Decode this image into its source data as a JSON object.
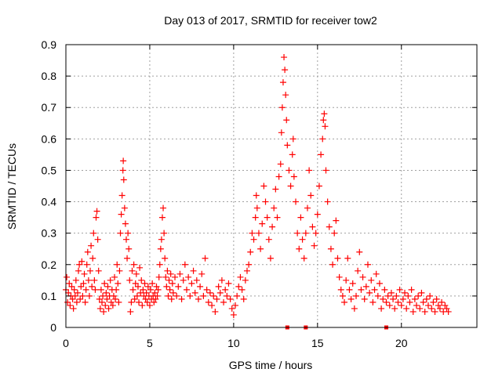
{
  "chart_data": {
    "type": "scatter",
    "title": "Day 013 of 2017, SRMTID for receiver tow2",
    "xlabel": "GPS time / hours",
    "ylabel": "SRMTID / TECUs",
    "xlim": [
      0,
      24.5
    ],
    "ylim": [
      0,
      0.9
    ],
    "xticks": [
      0,
      5,
      10,
      15,
      20
    ],
    "xtick_labels": [
      "0",
      "5",
      "10",
      "15",
      "20"
    ],
    "yticks": [
      0,
      0.1,
      0.2,
      0.3,
      0.4,
      0.5,
      0.6,
      0.7,
      0.8,
      0.9
    ],
    "ytick_labels": [
      "0",
      "0.1",
      "0.2",
      "0.3",
      "0.4",
      "0.5",
      "0.6",
      "0.7",
      "0.8",
      "0.9"
    ],
    "grid": true,
    "marker": "+",
    "color": "#ff0000",
    "series": [
      {
        "name": "SRMTID",
        "points": [
          [
            0.0,
            0.12
          ],
          [
            0.05,
            0.16
          ],
          [
            0.1,
            0.08
          ],
          [
            0.15,
            0.11
          ],
          [
            0.2,
            0.14
          ],
          [
            0.25,
            0.07
          ],
          [
            0.3,
            0.1
          ],
          [
            0.35,
            0.13
          ],
          [
            0.4,
            0.09
          ],
          [
            0.45,
            0.06
          ],
          [
            0.5,
            0.12
          ],
          [
            0.55,
            0.1
          ],
          [
            0.6,
            0.15
          ],
          [
            0.65,
            0.08
          ],
          [
            0.7,
            0.11
          ],
          [
            0.75,
            0.18
          ],
          [
            0.8,
            0.2
          ],
          [
            0.85,
            0.09
          ],
          [
            0.9,
            0.13
          ],
          [
            0.95,
            0.21
          ],
          [
            1.0,
            0.1
          ],
          [
            1.05,
            0.14
          ],
          [
            1.1,
            0.17
          ],
          [
            1.15,
            0.08
          ],
          [
            1.2,
            0.12
          ],
          [
            1.25,
            0.2
          ],
          [
            1.3,
            0.24
          ],
          [
            1.35,
            0.15
          ],
          [
            1.4,
            0.1
          ],
          [
            1.45,
            0.18
          ],
          [
            1.5,
            0.26
          ],
          [
            1.55,
            0.13
          ],
          [
            1.6,
            0.22
          ],
          [
            1.65,
            0.3
          ],
          [
            1.7,
            0.15
          ],
          [
            1.75,
            0.12
          ],
          [
            1.8,
            0.35
          ],
          [
            1.85,
            0.37
          ],
          [
            1.9,
            0.28
          ],
          [
            1.95,
            0.18
          ],
          [
            2.0,
            0.09
          ],
          [
            2.05,
            0.06
          ],
          [
            2.1,
            0.12
          ],
          [
            2.15,
            0.08
          ],
          [
            2.2,
            0.1
          ],
          [
            2.25,
            0.05
          ],
          [
            2.3,
            0.14
          ],
          [
            2.35,
            0.07
          ],
          [
            2.4,
            0.11
          ],
          [
            2.45,
            0.09
          ],
          [
            2.5,
            0.13
          ],
          [
            2.55,
            0.06
          ],
          [
            2.6,
            0.1
          ],
          [
            2.65,
            0.15
          ],
          [
            2.7,
            0.08
          ],
          [
            2.75,
            0.12
          ],
          [
            2.8,
            0.07
          ],
          [
            2.85,
            0.1
          ],
          [
            2.9,
            0.16
          ],
          [
            2.95,
            0.09
          ],
          [
            3.0,
            0.12
          ],
          [
            3.05,
            0.2
          ],
          [
            3.1,
            0.14
          ],
          [
            3.15,
            0.08
          ],
          [
            3.2,
            0.18
          ],
          [
            3.25,
            0.3
          ],
          [
            3.3,
            0.36
          ],
          [
            3.35,
            0.42
          ],
          [
            3.4,
            0.5
          ],
          [
            3.42,
            0.53
          ],
          [
            3.45,
            0.47
          ],
          [
            3.5,
            0.38
          ],
          [
            3.55,
            0.33
          ],
          [
            3.6,
            0.28
          ],
          [
            3.65,
            0.22
          ],
          [
            3.7,
            0.3
          ],
          [
            3.75,
            0.25
          ],
          [
            3.8,
            0.15
          ],
          [
            3.85,
            0.05
          ],
          [
            3.9,
            0.08
          ],
          [
            3.95,
            0.18
          ],
          [
            4.0,
            0.12
          ],
          [
            4.05,
            0.2
          ],
          [
            4.1,
            0.09
          ],
          [
            4.15,
            0.14
          ],
          [
            4.2,
            0.17
          ],
          [
            4.25,
            0.1
          ],
          [
            4.3,
            0.13
          ],
          [
            4.35,
            0.08
          ],
          [
            4.4,
            0.19
          ],
          [
            4.45,
            0.11
          ],
          [
            4.5,
            0.15
          ],
          [
            4.55,
            0.07
          ],
          [
            4.6,
            0.12
          ],
          [
            4.65,
            0.1
          ],
          [
            4.7,
            0.14
          ],
          [
            4.75,
            0.09
          ],
          [
            4.8,
            0.11
          ],
          [
            4.85,
            0.08
          ],
          [
            4.9,
            0.13
          ],
          [
            4.95,
            0.1
          ],
          [
            5.0,
            0.07
          ],
          [
            5.05,
            0.12
          ],
          [
            5.1,
            0.09
          ],
          [
            5.15,
            0.14
          ],
          [
            5.2,
            0.1
          ],
          [
            5.25,
            0.08
          ],
          [
            5.3,
            0.11
          ],
          [
            5.35,
            0.09
          ],
          [
            5.4,
            0.13
          ],
          [
            5.45,
            0.1
          ],
          [
            5.5,
            0.12
          ],
          [
            5.55,
            0.16
          ],
          [
            5.6,
            0.2
          ],
          [
            5.65,
            0.25
          ],
          [
            5.7,
            0.28
          ],
          [
            5.75,
            0.35
          ],
          [
            5.8,
            0.38
          ],
          [
            5.85,
            0.3
          ],
          [
            5.9,
            0.22
          ],
          [
            5.95,
            0.16
          ],
          [
            6.0,
            0.13
          ],
          [
            6.05,
            0.18
          ],
          [
            6.1,
            0.1
          ],
          [
            6.15,
            0.15
          ],
          [
            6.2,
            0.12
          ],
          [
            6.25,
            0.17
          ],
          [
            6.3,
            0.09
          ],
          [
            6.35,
            0.14
          ],
          [
            6.4,
            0.11
          ],
          [
            6.5,
            0.16
          ],
          [
            6.6,
            0.1
          ],
          [
            6.7,
            0.13
          ],
          [
            6.8,
            0.17
          ],
          [
            6.9,
            0.09
          ],
          [
            7.0,
            0.15
          ],
          [
            7.1,
            0.2
          ],
          [
            7.2,
            0.12
          ],
          [
            7.3,
            0.16
          ],
          [
            7.4,
            0.1
          ],
          [
            7.5,
            0.14
          ],
          [
            7.6,
            0.18
          ],
          [
            7.7,
            0.11
          ],
          [
            7.8,
            0.15
          ],
          [
            7.9,
            0.09
          ],
          [
            8.0,
            0.13
          ],
          [
            8.1,
            0.17
          ],
          [
            8.2,
            0.1
          ],
          [
            8.3,
            0.22
          ],
          [
            8.4,
            0.12
          ],
          [
            8.5,
            0.08
          ],
          [
            8.6,
            0.11
          ],
          [
            8.7,
            0.07
          ],
          [
            8.8,
            0.1
          ],
          [
            8.9,
            0.05
          ],
          [
            9.0,
            0.09
          ],
          [
            9.1,
            0.13
          ],
          [
            9.2,
            0.11
          ],
          [
            9.3,
            0.15
          ],
          [
            9.4,
            0.08
          ],
          [
            9.5,
            0.12
          ],
          [
            9.6,
            0.1
          ],
          [
            9.7,
            0.14
          ],
          [
            9.8,
            0.09
          ],
          [
            9.9,
            0.06
          ],
          [
            10.0,
            0.04
          ],
          [
            10.1,
            0.07
          ],
          [
            10.2,
            0.1
          ],
          [
            10.3,
            0.13
          ],
          [
            10.4,
            0.16
          ],
          [
            10.5,
            0.12
          ],
          [
            10.6,
            0.09
          ],
          [
            10.7,
            0.15
          ],
          [
            10.8,
            0.18
          ],
          [
            10.9,
            0.2
          ],
          [
            11.0,
            0.24
          ],
          [
            11.1,
            0.3
          ],
          [
            11.2,
            0.28
          ],
          [
            11.3,
            0.35
          ],
          [
            11.35,
            0.42
          ],
          [
            11.4,
            0.38
          ],
          [
            11.5,
            0.3
          ],
          [
            11.6,
            0.25
          ],
          [
            11.7,
            0.33
          ],
          [
            11.8,
            0.45
          ],
          [
            11.9,
            0.4
          ],
          [
            12.0,
            0.35
          ],
          [
            12.1,
            0.28
          ],
          [
            12.2,
            0.22
          ],
          [
            12.3,
            0.32
          ],
          [
            12.4,
            0.38
          ],
          [
            12.5,
            0.44
          ],
          [
            12.6,
            0.35
          ],
          [
            12.7,
            0.48
          ],
          [
            12.8,
            0.52
          ],
          [
            12.85,
            0.62
          ],
          [
            12.9,
            0.7
          ],
          [
            12.95,
            0.78
          ],
          [
            13.0,
            0.86
          ],
          [
            13.05,
            0.82
          ],
          [
            13.1,
            0.74
          ],
          [
            13.15,
            0.66
          ],
          [
            13.2,
            0.58
          ],
          [
            13.3,
            0.5
          ],
          [
            13.4,
            0.45
          ],
          [
            13.5,
            0.55
          ],
          [
            13.55,
            0.6
          ],
          [
            13.6,
            0.48
          ],
          [
            13.7,
            0.4
          ],
          [
            13.8,
            0.3
          ],
          [
            13.9,
            0.25
          ],
          [
            14.0,
            0.35
          ],
          [
            14.1,
            0.28
          ],
          [
            14.2,
            0.22
          ],
          [
            14.3,
            0.3
          ],
          [
            14.4,
            0.38
          ],
          [
            14.5,
            0.5
          ],
          [
            14.6,
            0.42
          ],
          [
            14.7,
            0.32
          ],
          [
            14.8,
            0.26
          ],
          [
            14.9,
            0.3
          ],
          [
            15.0,
            0.36
          ],
          [
            15.1,
            0.45
          ],
          [
            15.2,
            0.55
          ],
          [
            15.3,
            0.6
          ],
          [
            15.35,
            0.66
          ],
          [
            15.4,
            0.68
          ],
          [
            15.45,
            0.64
          ],
          [
            15.5,
            0.5
          ],
          [
            15.6,
            0.4
          ],
          [
            15.7,
            0.32
          ],
          [
            15.8,
            0.25
          ],
          [
            15.9,
            0.2
          ],
          [
            16.0,
            0.3
          ],
          [
            16.1,
            0.34
          ],
          [
            16.2,
            0.22
          ],
          [
            16.3,
            0.16
          ],
          [
            16.4,
            0.12
          ],
          [
            16.5,
            0.1
          ],
          [
            16.6,
            0.08
          ],
          [
            16.7,
            0.15
          ],
          [
            16.8,
            0.22
          ],
          [
            16.9,
            0.12
          ],
          [
            17.0,
            0.09
          ],
          [
            17.1,
            0.14
          ],
          [
            17.2,
            0.06
          ],
          [
            17.3,
            0.1
          ],
          [
            17.4,
            0.18
          ],
          [
            17.5,
            0.24
          ],
          [
            17.6,
            0.12
          ],
          [
            17.7,
            0.16
          ],
          [
            17.8,
            0.09
          ],
          [
            17.9,
            0.13
          ],
          [
            18.0,
            0.2
          ],
          [
            18.1,
            0.11
          ],
          [
            18.2,
            0.15
          ],
          [
            18.3,
            0.08
          ],
          [
            18.4,
            0.12
          ],
          [
            18.5,
            0.17
          ],
          [
            18.6,
            0.1
          ],
          [
            18.7,
            0.14
          ],
          [
            18.8,
            0.06
          ],
          [
            18.9,
            0.09
          ],
          [
            19.0,
            0.12
          ],
          [
            19.1,
            0.08
          ],
          [
            19.2,
            0.1
          ],
          [
            19.3,
            0.07
          ],
          [
            19.4,
            0.11
          ],
          [
            19.5,
            0.09
          ],
          [
            19.6,
            0.06
          ],
          [
            19.7,
            0.1
          ],
          [
            19.8,
            0.08
          ],
          [
            19.9,
            0.12
          ],
          [
            20.0,
            0.07
          ],
          [
            20.1,
            0.09
          ],
          [
            20.2,
            0.11
          ],
          [
            20.3,
            0.06
          ],
          [
            20.4,
            0.1
          ],
          [
            20.5,
            0.08
          ],
          [
            20.6,
            0.12
          ],
          [
            20.7,
            0.05
          ],
          [
            20.8,
            0.09
          ],
          [
            20.9,
            0.07
          ],
          [
            21.0,
            0.1
          ],
          [
            21.1,
            0.06
          ],
          [
            21.2,
            0.11
          ],
          [
            21.3,
            0.08
          ],
          [
            21.4,
            0.05
          ],
          [
            21.5,
            0.09
          ],
          [
            21.6,
            0.07
          ],
          [
            21.7,
            0.1
          ],
          [
            21.8,
            0.06
          ],
          [
            21.9,
            0.08
          ],
          [
            22.0,
            0.05
          ],
          [
            22.1,
            0.09
          ],
          [
            22.2,
            0.07
          ],
          [
            22.3,
            0.06
          ],
          [
            22.4,
            0.08
          ],
          [
            22.5,
            0.05
          ],
          [
            22.6,
            0.07
          ],
          [
            22.7,
            0.06
          ],
          [
            22.8,
            0.05
          ]
        ]
      }
    ],
    "zero_markers": [
      13.2,
      14.3,
      19.1
    ]
  }
}
